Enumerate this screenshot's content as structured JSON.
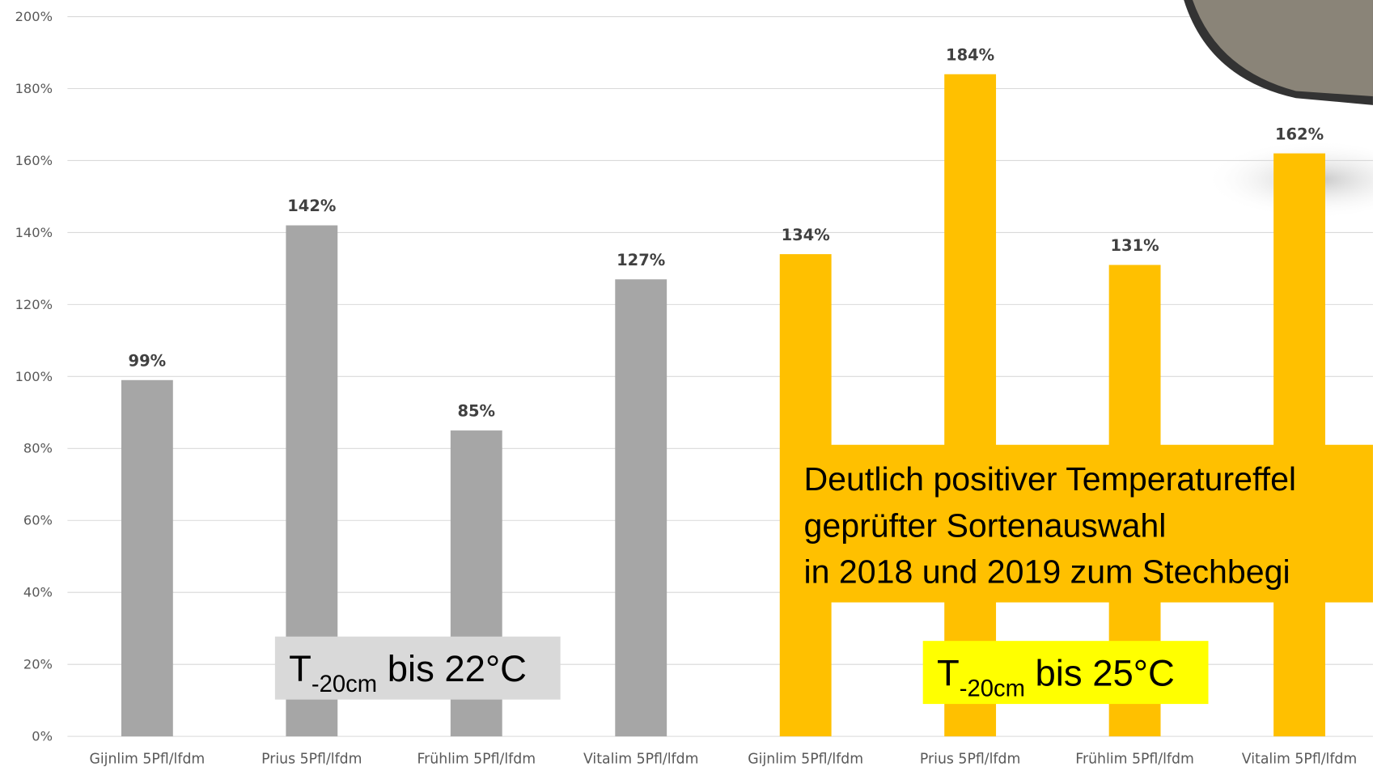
{
  "chart_data": {
    "type": "bar",
    "categories": [
      "Gijnlim 5Pfl/lfdm",
      "Prius 5Pfl/lfdm",
      "Frühlim 5Pfl/lfdm",
      "Vitalim 5Pfl/lfdm",
      "Gijnlim 5Pfl/lfdm",
      "Prius 5Pfl/lfdm",
      "Frühlim 5Pfl/lfdm",
      "Vitalim 5Pfl/lfdm"
    ],
    "values": [
      99,
      142,
      85,
      127,
      134,
      184,
      131,
      162
    ],
    "value_labels": [
      "99%",
      "142%",
      "85%",
      "127%",
      "134%",
      "184%",
      "131%",
      "162%"
    ],
    "colors": [
      "#a6a6a6",
      "#a6a6a6",
      "#a6a6a6",
      "#a6a6a6",
      "#ffc000",
      "#ffc000",
      "#ffc000",
      "#ffc000"
    ],
    "ylim": [
      0,
      200
    ],
    "yticks": [
      {
        "value": 0,
        "label": "0%"
      },
      {
        "value": 20,
        "label": "20%"
      },
      {
        "value": 40,
        "label": "40%"
      },
      {
        "value": 60,
        "label": "60%"
      },
      {
        "value": 80,
        "label": "80%"
      },
      {
        "value": 100,
        "label": "100%"
      },
      {
        "value": 120,
        "label": "120%"
      },
      {
        "value": 140,
        "label": "140%"
      },
      {
        "value": 160,
        "label": "160%"
      },
      {
        "value": 180,
        "label": "180%"
      },
      {
        "value": 200,
        "label": "200%"
      }
    ],
    "grid": true,
    "annotations": [
      {
        "text": "T",
        "subscript": "-20cm",
        "suffix": " bis 22°C",
        "color": "#d9d9d9"
      },
      {
        "text": "T",
        "subscript": "-20cm",
        "suffix": " bis 25°C",
        "color": "#ffff00"
      }
    ],
    "callout": {
      "lines": [
        "Deutlich positiver Temperatureffel",
        "geprüfter Sortenauswahl",
        "in 2018 und 2019 zum Stechbegi"
      ],
      "color": "#ffc000"
    }
  }
}
